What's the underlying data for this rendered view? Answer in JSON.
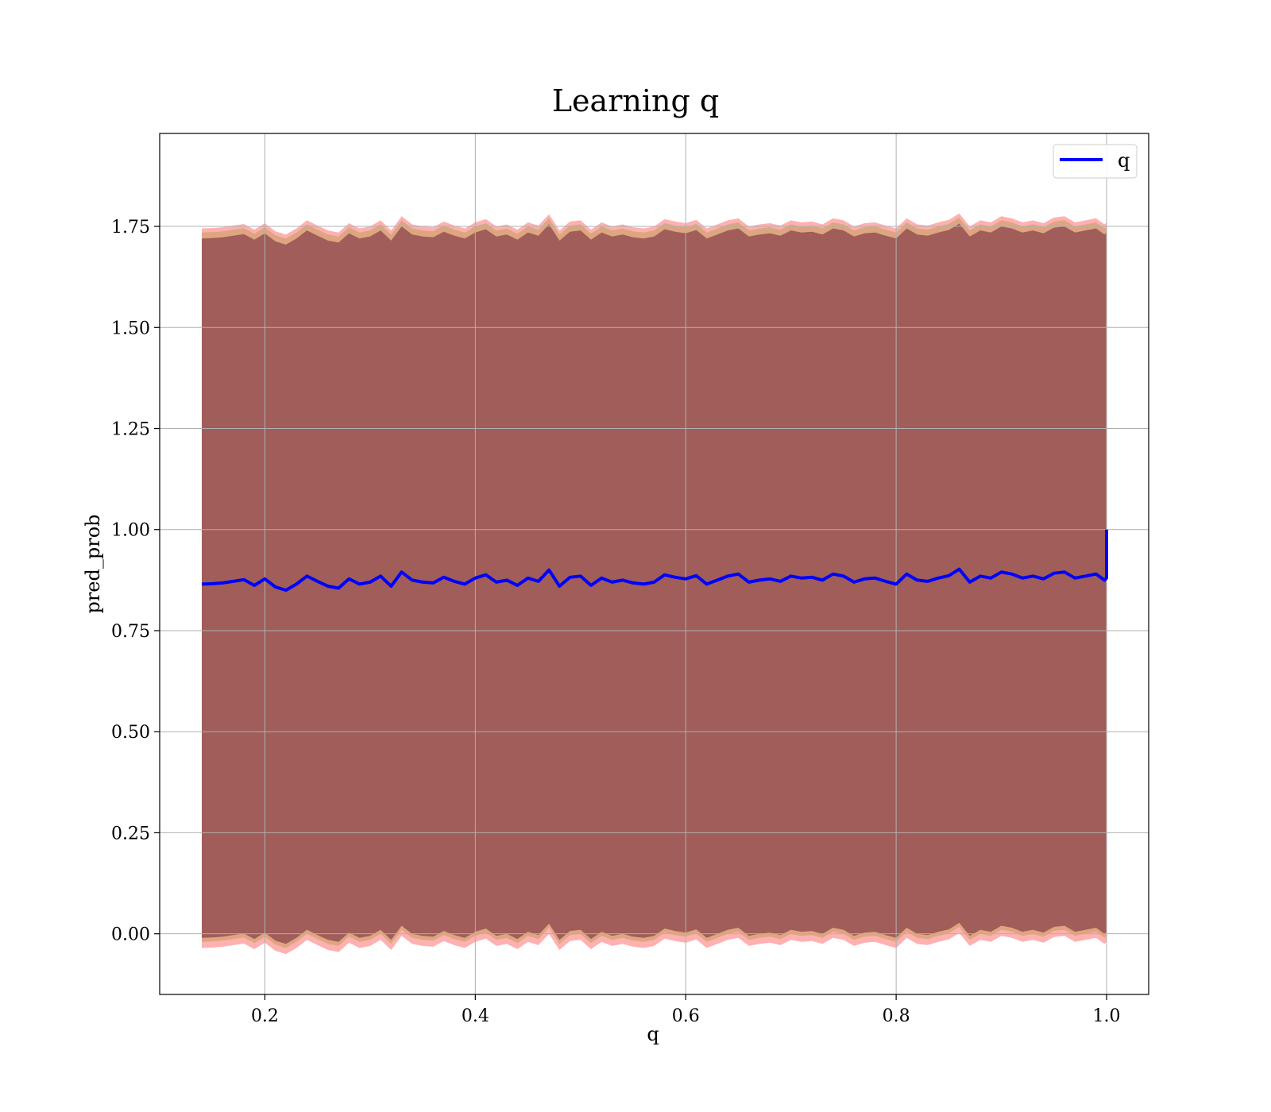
{
  "chart_data": {
    "type": "line",
    "title": "Learning q",
    "xlabel": "q",
    "ylabel": "pred_prob",
    "xlim": [
      0.1,
      1.04
    ],
    "ylim": [
      -0.15,
      1.98
    ],
    "xticks": [
      0.2,
      0.4,
      0.6,
      0.8,
      1.0
    ],
    "xtick_labels": [
      "0.2",
      "0.4",
      "0.6",
      "0.8",
      "1.0"
    ],
    "yticks": [
      0.0,
      0.25,
      0.5,
      0.75,
      1.0,
      1.25,
      1.5,
      1.75
    ],
    "ytick_labels": [
      "0.00",
      "0.25",
      "0.50",
      "0.75",
      "1.00",
      "1.25",
      "1.50",
      "1.75"
    ],
    "grid": true,
    "legend": {
      "placement": "top-right",
      "entries": [
        "q"
      ]
    },
    "series": [
      {
        "name": "q",
        "color": "#0000ff",
        "x": [
          0.14,
          0.15,
          0.16,
          0.17,
          0.18,
          0.19,
          0.2,
          0.21,
          0.22,
          0.23,
          0.24,
          0.25,
          0.26,
          0.27,
          0.28,
          0.29,
          0.3,
          0.31,
          0.32,
          0.33,
          0.34,
          0.35,
          0.36,
          0.37,
          0.38,
          0.39,
          0.4,
          0.41,
          0.42,
          0.43,
          0.44,
          0.45,
          0.46,
          0.47,
          0.48,
          0.49,
          0.5,
          0.51,
          0.52,
          0.53,
          0.54,
          0.55,
          0.56,
          0.57,
          0.58,
          0.59,
          0.6,
          0.61,
          0.62,
          0.63,
          0.64,
          0.65,
          0.66,
          0.67,
          0.68,
          0.69,
          0.7,
          0.71,
          0.72,
          0.73,
          0.74,
          0.75,
          0.76,
          0.77,
          0.78,
          0.79,
          0.8,
          0.81,
          0.82,
          0.83,
          0.84,
          0.85,
          0.86,
          0.87,
          0.88,
          0.89,
          0.9,
          0.91,
          0.92,
          0.93,
          0.94,
          0.95,
          0.96,
          0.97,
          0.98,
          0.99,
          0.998,
          1.0,
          1.0
        ],
        "y": [
          0.865,
          0.866,
          0.868,
          0.872,
          0.876,
          0.862,
          0.878,
          0.858,
          0.85,
          0.865,
          0.885,
          0.872,
          0.86,
          0.855,
          0.878,
          0.865,
          0.87,
          0.885,
          0.86,
          0.895,
          0.875,
          0.87,
          0.868,
          0.882,
          0.872,
          0.865,
          0.88,
          0.888,
          0.87,
          0.875,
          0.862,
          0.88,
          0.872,
          0.9,
          0.86,
          0.882,
          0.885,
          0.862,
          0.88,
          0.87,
          0.875,
          0.868,
          0.865,
          0.87,
          0.888,
          0.882,
          0.878,
          0.886,
          0.865,
          0.875,
          0.885,
          0.89,
          0.87,
          0.875,
          0.878,
          0.872,
          0.885,
          0.88,
          0.882,
          0.875,
          0.89,
          0.885,
          0.87,
          0.878,
          0.88,
          0.872,
          0.865,
          0.89,
          0.875,
          0.872,
          0.88,
          0.886,
          0.902,
          0.87,
          0.885,
          0.88,
          0.895,
          0.89,
          0.88,
          0.885,
          0.878,
          0.892,
          0.895,
          0.88,
          0.885,
          0.89,
          0.875,
          0.88,
          1.0
        ]
      }
    ],
    "bands": [
      {
        "lower": -0.025,
        "upper": 1.755,
        "color": "#ff6f6f",
        "opacity": 0.55
      },
      {
        "lower": -0.01,
        "upper": 1.745,
        "color": "#c8a060",
        "opacity": 0.6
      },
      {
        "lower": 0.0,
        "upper": 1.73,
        "color": "#7a3040",
        "opacity": 0.62
      }
    ]
  }
}
